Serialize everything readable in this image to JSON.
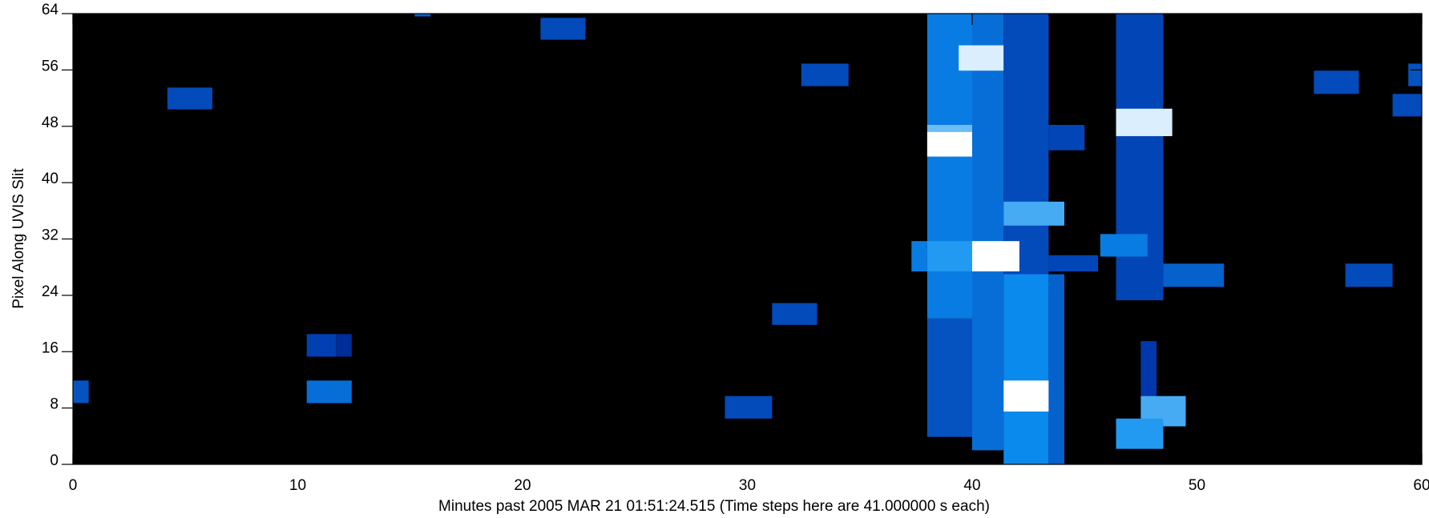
{
  "chart_data": {
    "type": "heatmap",
    "x_label": "Minutes past 2005 MAR 21 01:51:24.515 (Time steps here are 41.000000 s each)",
    "y_label": "Pixel Along UVIS Slit",
    "xlim": [
      0,
      60
    ],
    "xticks": [
      0,
      10,
      20,
      30,
      40,
      50,
      60
    ],
    "ylim": [
      0,
      64
    ],
    "yticks": [
      0,
      8,
      16,
      24,
      32,
      40,
      48,
      56,
      64
    ],
    "colormap": [
      "#000000",
      "#0032a8",
      "#0a8ff0",
      "#ffffff"
    ],
    "cells": [
      {
        "x": [
          0,
          0.7
        ],
        "y": [
          8.7,
          11.9
        ],
        "value": 0.45
      },
      {
        "x": [
          4.2,
          6.2
        ],
        "y": [
          50.4,
          53.5
        ],
        "value": 0.42
      },
      {
        "x": [
          10.4,
          12.4
        ],
        "y": [
          8.7,
          11.9
        ],
        "value": 0.55
      },
      {
        "x": [
          10.4,
          11.7
        ],
        "y": [
          15.3,
          18.5
        ],
        "value": 0.38
      },
      {
        "x": [
          11.7,
          12.4
        ],
        "y": [
          15.3,
          18.5
        ],
        "value": 0.3
      },
      {
        "x": [
          15.2,
          15.9
        ],
        "y": [
          63.6,
          64
        ],
        "value": 0.5
      },
      {
        "x": [
          20.8,
          22.8
        ],
        "y": [
          60.3,
          63.4
        ],
        "value": 0.42
      },
      {
        "x": [
          29.0,
          31.1
        ],
        "y": [
          6.5,
          9.7
        ],
        "value": 0.42
      },
      {
        "x": [
          31.1,
          33.1
        ],
        "y": [
          19.8,
          22.9
        ],
        "value": 0.42
      },
      {
        "x": [
          32.4,
          34.5
        ],
        "y": [
          53.7,
          56.9
        ],
        "value": 0.42
      },
      {
        "x": [
          37.3,
          38.0
        ],
        "y": [
          27.4,
          31.7
        ],
        "value": 0.6
      },
      {
        "x": [
          38.0,
          40.0
        ],
        "y": [
          20.7,
          64
        ],
        "value": 0.6
      },
      {
        "x": [
          38.0,
          40.0
        ],
        "y": [
          3.9,
          20.7
        ],
        "value": 0.45
      },
      {
        "x": [
          38.0,
          40.0
        ],
        "y": [
          47.2,
          48.2
        ],
        "value": 0.8
      },
      {
        "x": [
          38.0,
          40.0
        ],
        "y": [
          43.7,
          47.2
        ],
        "value": 1.0
      },
      {
        "x": [
          38.0,
          40.0
        ],
        "y": [
          27.4,
          31.7
        ],
        "value": 0.7
      },
      {
        "x": [
          40.0,
          41.4
        ],
        "y": [
          2,
          64
        ],
        "value": 0.55
      },
      {
        "x": [
          39.4,
          41.4
        ],
        "y": [
          55.9,
          59.5
        ],
        "value": 0.95
      },
      {
        "x": [
          41.4,
          43.4
        ],
        "y": [
          27,
          64
        ],
        "value": 0.42
      },
      {
        "x": [
          41.4,
          43.4
        ],
        "y": [
          0,
          27
        ],
        "value": 0.65
      },
      {
        "x": [
          41.4,
          44.1
        ],
        "y": [
          33.9,
          37.3
        ],
        "value": 0.75
      },
      {
        "x": [
          40.0,
          42.1
        ],
        "y": [
          27.4,
          31.7
        ],
        "value": 1.0
      },
      {
        "x": [
          41.4,
          44.1
        ],
        "y": [
          7.5,
          11.9
        ],
        "value": 1.0
      },
      {
        "x": [
          43.4,
          44.1
        ],
        "y": [
          0,
          27
        ],
        "value": 0.5
      },
      {
        "x": [
          43.4,
          45.6
        ],
        "y": [
          27.4,
          29.7
        ],
        "value": 0.4
      },
      {
        "x": [
          43.4,
          45.0
        ],
        "y": [
          44.6,
          48.2
        ],
        "value": 0.4
      },
      {
        "x": [
          46.4,
          48.5
        ],
        "y": [
          23.3,
          64
        ],
        "value": 0.4
      },
      {
        "x": [
          46.4,
          48.9
        ],
        "y": [
          46.6,
          50.5
        ],
        "value": 0.95
      },
      {
        "x": [
          45.7,
          47.8
        ],
        "y": [
          29.5,
          32.7
        ],
        "value": 0.6
      },
      {
        "x": [
          48.5,
          51.2
        ],
        "y": [
          25.2,
          28.5
        ],
        "value": 0.5
      },
      {
        "x": [
          47.5,
          48.2
        ],
        "y": [
          9.7,
          17.5
        ],
        "value": 0.35
      },
      {
        "x": [
          47.5,
          49.5
        ],
        "y": [
          5.4,
          9.7
        ],
        "value": 0.75
      },
      {
        "x": [
          46.4,
          48.5
        ],
        "y": [
          2.2,
          6.5
        ],
        "value": 0.7
      },
      {
        "x": [
          55.2,
          57.2
        ],
        "y": [
          52.6,
          55.9
        ],
        "value": 0.42
      },
      {
        "x": [
          56.6,
          58.7
        ],
        "y": [
          25.2,
          28.5
        ],
        "value": 0.42
      },
      {
        "x": [
          58.7,
          60
        ],
        "y": [
          49.4,
          52.6
        ],
        "value": 0.42
      },
      {
        "x": [
          59.4,
          60
        ],
        "y": [
          53.7,
          56.9
        ],
        "value": 0.45
      }
    ]
  }
}
